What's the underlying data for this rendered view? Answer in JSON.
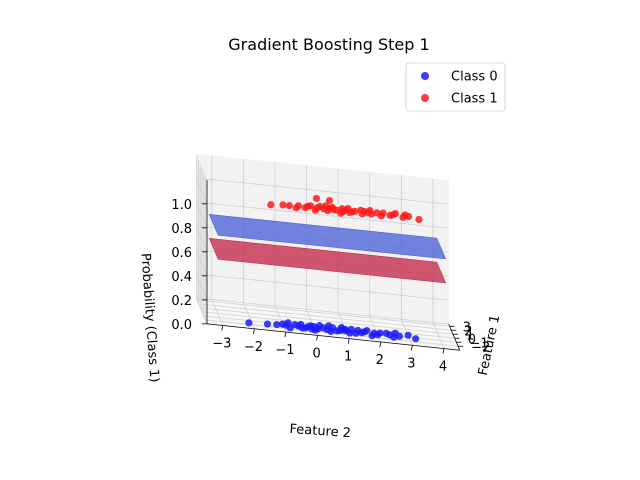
{
  "chart_data": {
    "type": "scatter",
    "title": "Gradient Boosting Step 1",
    "xlabel": "Feature 1",
    "ylabel": "Feature 2",
    "zlabel": "Probability (Class 1)",
    "x_ticks": [
      "−2",
      "−1",
      "0",
      "1",
      "2",
      "3"
    ],
    "y_ticks": [
      "−3",
      "−2",
      "−1",
      "0",
      "1",
      "2",
      "3",
      "4"
    ],
    "z_ticks": [
      "0.0",
      "0.2",
      "0.4",
      "0.6",
      "0.8",
      "1.0"
    ],
    "xlim": [
      -3,
      3.5
    ],
    "ylim": [
      -3.5,
      4.5
    ],
    "zlim": [
      0,
      1.2
    ],
    "grid": true,
    "legend_position": "top-right",
    "series": [
      {
        "name": "Class 0",
        "color": "#1a1aff",
        "z": 0,
        "points": [
          [
            -1.6,
            -2.1
          ],
          [
            -1.4,
            -1.5
          ],
          [
            -1.2,
            -0.9
          ],
          [
            -1.5,
            -0.4
          ],
          [
            -1.0,
            -0.2
          ],
          [
            -1.3,
            0.1
          ],
          [
            -0.9,
            0.3
          ],
          [
            -1.6,
            0.5
          ],
          [
            -1.1,
            0.8
          ],
          [
            -0.7,
            1.0
          ],
          [
            -1.4,
            1.3
          ],
          [
            -0.8,
            1.6
          ],
          [
            -1.2,
            2.0
          ],
          [
            -0.6,
            2.3
          ],
          [
            -1.0,
            2.7
          ],
          [
            -0.5,
            3.0
          ],
          [
            -1.3,
            -1.2
          ],
          [
            -0.8,
            -0.6
          ],
          [
            -1.7,
            0.0
          ],
          [
            -0.6,
            0.6
          ],
          [
            -1.5,
            1.1
          ],
          [
            -0.9,
            1.9
          ],
          [
            -0.7,
            -0.1
          ],
          [
            -1.2,
            0.4
          ],
          [
            -0.5,
            1.2
          ],
          [
            -1.1,
            1.5
          ],
          [
            -0.4,
            0.2
          ],
          [
            -1.8,
            -0.8
          ],
          [
            -0.9,
            2.4
          ],
          [
            -0.3,
            0.9
          ],
          [
            -1.4,
            2.5
          ],
          [
            -0.6,
            -0.4
          ],
          [
            -1.0,
            1.0
          ],
          [
            -0.8,
            0.0
          ],
          [
            -1.5,
            -0.1
          ],
          [
            -0.4,
            1.7
          ],
          [
            -1.3,
            0.7
          ],
          [
            -0.7,
            2.1
          ],
          [
            -1.6,
            1.8
          ],
          [
            -0.2,
            0.5
          ],
          [
            -1.1,
            -0.5
          ],
          [
            -0.5,
            -0.8
          ],
          [
            -0.9,
            0.9
          ],
          [
            -1.2,
            3.2
          ],
          [
            -0.6,
            1.4
          ],
          [
            -1.4,
            -0.3
          ],
          [
            -0.3,
            2.6
          ],
          [
            -1.0,
            -1.0
          ]
        ]
      },
      {
        "name": "Class 1",
        "color": "#ff1a1a",
        "z": 1,
        "points": [
          [
            -1.5,
            -1.4
          ],
          [
            -1.2,
            -0.8
          ],
          [
            -1.3,
            -0.3
          ],
          [
            -1.0,
            0.1
          ],
          [
            -0.8,
            0.5
          ],
          [
            -1.1,
            0.7
          ],
          [
            -0.6,
            0.9
          ],
          [
            -1.4,
            1.1
          ],
          [
            -0.9,
            1.3
          ],
          [
            -0.5,
            1.5
          ],
          [
            -1.2,
            1.8
          ],
          [
            -0.7,
            2.0
          ],
          [
            -1.0,
            2.4
          ],
          [
            -0.4,
            2.6
          ],
          [
            -0.8,
            3.0
          ],
          [
            -1.3,
            3.3
          ],
          [
            -1.6,
            -0.6
          ],
          [
            -0.7,
            -0.1
          ],
          [
            -1.1,
            0.3
          ],
          [
            -0.5,
            0.6
          ],
          [
            -1.3,
            0.9
          ],
          [
            -0.9,
            1.7
          ],
          [
            -0.6,
            2.2
          ],
          [
            -1.5,
            0.4
          ],
          [
            -0.4,
            1.1
          ],
          [
            -1.0,
            -0.5
          ],
          [
            -1.7,
            0.0
          ],
          [
            -0.8,
            1.0
          ],
          [
            -1.2,
            2.8
          ],
          [
            -0.3,
            1.8
          ],
          [
            -0.9,
            -0.2
          ],
          [
            -1.4,
            1.5
          ],
          [
            -0.6,
            0.2
          ],
          [
            -1.1,
            1.2
          ],
          [
            -0.5,
            2.9
          ],
          [
            -1.8,
            0.8
          ],
          [
            -0.7,
            1.6
          ],
          [
            -1.0,
            0.6
          ],
          [
            -0.3,
            0.4
          ],
          [
            -1.2,
            -1.0
          ],
          [
            -0.8,
            2.5
          ],
          [
            -1.4,
            2.1
          ],
          [
            1.2,
            0.6
          ],
          [
            1.4,
            0.2
          ]
        ]
      }
    ],
    "surfaces": [
      {
        "name": "step_0_surface",
        "color": "#4d62d8",
        "z": 0.72
      },
      {
        "name": "step_1_surface",
        "color": "#c42a4a",
        "z": 0.52
      }
    ]
  }
}
